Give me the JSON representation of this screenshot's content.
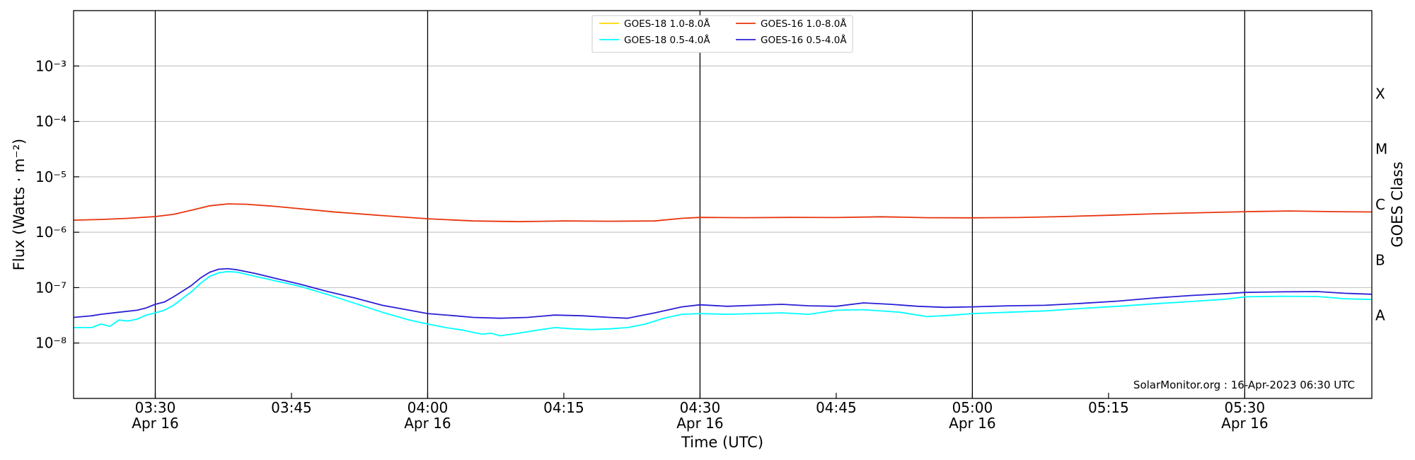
{
  "chart_data": {
    "type": "line",
    "title": "",
    "xlabel": "Time (UTC)",
    "ylabel": "Flux (Watts · m⁻²)",
    "y2label": "GOES Class",
    "yscale": "log",
    "ylim": [
      1e-09,
      0.01
    ],
    "xlim": [
      "2023-04-16 03:21",
      "2023-04-16 05:44"
    ],
    "grid": "horizontal",
    "legend_position": "top-center",
    "credit": "SolarMonitor.org : 16-Apr-2023 06:30 UTC",
    "x_ticks": [
      {
        "time": "03:30",
        "date": "Apr 16",
        "value": "2023-04-16 03:30",
        "major": true
      },
      {
        "time": "03:45",
        "date": "",
        "value": "2023-04-16 03:45",
        "major": false
      },
      {
        "time": "04:00",
        "date": "Apr 16",
        "value": "2023-04-16 04:00",
        "major": true
      },
      {
        "time": "04:15",
        "date": "",
        "value": "2023-04-16 04:15",
        "major": false
      },
      {
        "time": "04:30",
        "date": "Apr 16",
        "value": "2023-04-16 04:30",
        "major": true
      },
      {
        "time": "04:45",
        "date": "",
        "value": "2023-04-16 04:45",
        "major": false
      },
      {
        "time": "05:00",
        "date": "Apr 16",
        "value": "2023-04-16 05:00",
        "major": true
      },
      {
        "time": "05:15",
        "date": "",
        "value": "2023-04-16 05:15",
        "major": false
      },
      {
        "time": "05:30",
        "date": "Apr 16",
        "value": "2023-04-16 05:30",
        "major": true
      }
    ],
    "y_ticks": [
      {
        "label": "10⁻⁸",
        "value": 1e-08
      },
      {
        "label": "10⁻⁷",
        "value": 1e-07
      },
      {
        "label": "10⁻⁶",
        "value": 1e-06
      },
      {
        "label": "10⁻⁵",
        "value": 1e-05
      },
      {
        "label": "10⁻⁴",
        "value": 0.0001
      },
      {
        "label": "10⁻³",
        "value": 0.001
      }
    ],
    "goes_classes": [
      {
        "label": "A",
        "value": 3.16e-08
      },
      {
        "label": "B",
        "value": 3.16e-07
      },
      {
        "label": "C",
        "value": 3.16e-06
      },
      {
        "label": "M",
        "value": 3.16e-05
      },
      {
        "label": "X",
        "value": 0.000316
      }
    ],
    "series": [
      {
        "name": "GOES-18 1.0-8.0Å",
        "color": "#ffd700",
        "x": [],
        "values": []
      },
      {
        "name": "GOES-18 0.5-4.0Å",
        "color": "#00ffff",
        "x": [
          "2023-04-16 03:21",
          "2023-04-16 03:23",
          "2023-04-16 03:24",
          "2023-04-16 03:25",
          "2023-04-16 03:26",
          "2023-04-16 03:27",
          "2023-04-16 03:28",
          "2023-04-16 03:29",
          "2023-04-16 03:30",
          "2023-04-16 03:31",
          "2023-04-16 03:32",
          "2023-04-16 03:34",
          "2023-04-16 03:35",
          "2023-04-16 03:36",
          "2023-04-16 03:37",
          "2023-04-16 03:38",
          "2023-04-16 03:39",
          "2023-04-16 03:41",
          "2023-04-16 03:43",
          "2023-04-16 03:46",
          "2023-04-16 03:49",
          "2023-04-16 03:52",
          "2023-04-16 03:55",
          "2023-04-16 03:58",
          "2023-04-16 04:00",
          "2023-04-16 04:02",
          "2023-04-16 04:04",
          "2023-04-16 04:05",
          "2023-04-16 04:06",
          "2023-04-16 04:07",
          "2023-04-16 04:08",
          "2023-04-16 04:10",
          "2023-04-16 04:12",
          "2023-04-16 04:14",
          "2023-04-16 04:16",
          "2023-04-16 04:18",
          "2023-04-16 04:20",
          "2023-04-16 04:22",
          "2023-04-16 04:24",
          "2023-04-16 04:26",
          "2023-04-16 04:28",
          "2023-04-16 04:30",
          "2023-04-16 04:33",
          "2023-04-16 04:36",
          "2023-04-16 04:39",
          "2023-04-16 04:42",
          "2023-04-16 04:45",
          "2023-04-16 04:48",
          "2023-04-16 04:52",
          "2023-04-16 04:55",
          "2023-04-16 04:58",
          "2023-04-16 05:00",
          "2023-04-16 05:04",
          "2023-04-16 05:08",
          "2023-04-16 05:12",
          "2023-04-16 05:16",
          "2023-04-16 05:20",
          "2023-04-16 05:24",
          "2023-04-16 05:28",
          "2023-04-16 05:30",
          "2023-04-16 05:34",
          "2023-04-16 05:38",
          "2023-04-16 05:41",
          "2023-04-16 05:44"
        ],
        "values": [
          1.9e-08,
          1.9e-08,
          2.2e-08,
          2e-08,
          2.6e-08,
          2.5e-08,
          2.7e-08,
          3.2e-08,
          3.5e-08,
          3.9e-08,
          4.8e-08,
          8.5e-08,
          1.2e-07,
          1.6e-07,
          1.85e-07,
          1.95e-07,
          1.9e-07,
          1.6e-07,
          1.35e-07,
          1.05e-07,
          7.5e-08,
          5.2e-08,
          3.6e-08,
          2.6e-08,
          2.2e-08,
          1.9e-08,
          1.7e-08,
          1.55e-08,
          1.45e-08,
          1.5e-08,
          1.35e-08,
          1.5e-08,
          1.7e-08,
          1.9e-08,
          1.8e-08,
          1.75e-08,
          1.8e-08,
          1.9e-08,
          2.2e-08,
          2.8e-08,
          3.3e-08,
          3.4e-08,
          3.3e-08,
          3.4e-08,
          3.5e-08,
          3.3e-08,
          3.9e-08,
          4e-08,
          3.6e-08,
          3e-08,
          3.2e-08,
          3.4e-08,
          3.6e-08,
          3.8e-08,
          4.2e-08,
          4.6e-08,
          5.1e-08,
          5.6e-08,
          6.2e-08,
          6.8e-08,
          7e-08,
          6.9e-08,
          6.3e-08,
          6.1e-08
        ]
      },
      {
        "name": "GOES-16 1.0-8.0Å",
        "color": "#e8340c",
        "x": [
          "2023-04-16 03:21",
          "2023-04-16 03:24",
          "2023-04-16 03:27",
          "2023-04-16 03:30",
          "2023-04-16 03:32",
          "2023-04-16 03:34",
          "2023-04-16 03:36",
          "2023-04-16 03:38",
          "2023-04-16 03:40",
          "2023-04-16 03:43",
          "2023-04-16 03:46",
          "2023-04-16 03:50",
          "2023-04-16 03:55",
          "2023-04-16 04:00",
          "2023-04-16 04:05",
          "2023-04-16 04:10",
          "2023-04-16 04:15",
          "2023-04-16 04:20",
          "2023-04-16 04:25",
          "2023-04-16 04:28",
          "2023-04-16 04:30",
          "2023-04-16 04:35",
          "2023-04-16 04:40",
          "2023-04-16 04:45",
          "2023-04-16 04:50",
          "2023-04-16 04:55",
          "2023-04-16 05:00",
          "2023-04-16 05:05",
          "2023-04-16 05:10",
          "2023-04-16 05:15",
          "2023-04-16 05:20",
          "2023-04-16 05:25",
          "2023-04-16 05:30",
          "2023-04-16 05:35",
          "2023-04-16 05:40",
          "2023-04-16 05:44"
        ],
        "values": [
          1.65e-06,
          1.7e-06,
          1.78e-06,
          1.92e-06,
          2.1e-06,
          2.5e-06,
          3e-06,
          3.25e-06,
          3.2e-06,
          2.95e-06,
          2.65e-06,
          2.3e-06,
          2e-06,
          1.75e-06,
          1.6e-06,
          1.55e-06,
          1.6e-06,
          1.58e-06,
          1.6e-06,
          1.78e-06,
          1.85e-06,
          1.83e-06,
          1.85e-06,
          1.84e-06,
          1.9e-06,
          1.83e-06,
          1.82e-06,
          1.84e-06,
          1.92e-06,
          2.02e-06,
          2.15e-06,
          2.25e-06,
          2.35e-06,
          2.42e-06,
          2.35e-06,
          2.32e-06
        ]
      },
      {
        "name": "GOES-16 0.5-4.0Å",
        "color": "#2b1fd6",
        "x": [
          "2023-04-16 03:21",
          "2023-04-16 03:23",
          "2023-04-16 03:24",
          "2023-04-16 03:26",
          "2023-04-16 03:28",
          "2023-04-16 03:29",
          "2023-04-16 03:30",
          "2023-04-16 03:31",
          "2023-04-16 03:32",
          "2023-04-16 03:34",
          "2023-04-16 03:35",
          "2023-04-16 03:36",
          "2023-04-16 03:37",
          "2023-04-16 03:38",
          "2023-04-16 03:39",
          "2023-04-16 03:41",
          "2023-04-16 03:43",
          "2023-04-16 03:46",
          "2023-04-16 03:49",
          "2023-04-16 03:52",
          "2023-04-16 03:55",
          "2023-04-16 03:58",
          "2023-04-16 04:00",
          "2023-04-16 04:03",
          "2023-04-16 04:05",
          "2023-04-16 04:08",
          "2023-04-16 04:11",
          "2023-04-16 04:14",
          "2023-04-16 04:17",
          "2023-04-16 04:20",
          "2023-04-16 04:22",
          "2023-04-16 04:25",
          "2023-04-16 04:28",
          "2023-04-16 04:30",
          "2023-04-16 04:33",
          "2023-04-16 04:36",
          "2023-04-16 04:39",
          "2023-04-16 04:42",
          "2023-04-16 04:45",
          "2023-04-16 04:48",
          "2023-04-16 04:51",
          "2023-04-16 04:54",
          "2023-04-16 04:57",
          "2023-04-16 05:00",
          "2023-04-16 05:04",
          "2023-04-16 05:08",
          "2023-04-16 05:12",
          "2023-04-16 05:16",
          "2023-04-16 05:20",
          "2023-04-16 05:24",
          "2023-04-16 05:28",
          "2023-04-16 05:30",
          "2023-04-16 05:34",
          "2023-04-16 05:38",
          "2023-04-16 05:41",
          "2023-04-16 05:44"
        ],
        "values": [
          2.9e-08,
          3.1e-08,
          3.3e-08,
          3.6e-08,
          3.9e-08,
          4.3e-08,
          5e-08,
          5.5e-08,
          6.8e-08,
          1.1e-07,
          1.5e-07,
          1.9e-07,
          2.15e-07,
          2.2e-07,
          2.1e-07,
          1.8e-07,
          1.5e-07,
          1.15e-07,
          8.5e-08,
          6.5e-08,
          4.8e-08,
          3.9e-08,
          3.4e-08,
          3.1e-08,
          2.9e-08,
          2.8e-08,
          2.9e-08,
          3.2e-08,
          3.1e-08,
          2.9e-08,
          2.8e-08,
          3.5e-08,
          4.5e-08,
          4.9e-08,
          4.6e-08,
          4.8e-08,
          5e-08,
          4.7e-08,
          4.6e-08,
          5.3e-08,
          5e-08,
          4.6e-08,
          4.4e-08,
          4.5e-08,
          4.7e-08,
          4.8e-08,
          5.2e-08,
          5.7e-08,
          6.5e-08,
          7.2e-08,
          7.8e-08,
          8.2e-08,
          8.4e-08,
          8.5e-08,
          7.9e-08,
          7.6e-08
        ]
      }
    ]
  }
}
